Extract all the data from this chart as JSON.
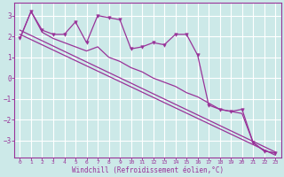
{
  "x": [
    0,
    1,
    2,
    3,
    4,
    5,
    6,
    7,
    8,
    9,
    10,
    11,
    12,
    13,
    14,
    15,
    16,
    17,
    18,
    19,
    20,
    21,
    22,
    23
  ],
  "line1": [
    1.9,
    3.2,
    2.3,
    2.1,
    2.1,
    2.7,
    1.7,
    3.0,
    2.9,
    2.8,
    1.4,
    1.5,
    1.7,
    1.6,
    2.1,
    2.1,
    1.1,
    -1.3,
    -1.5,
    -1.6,
    -1.5,
    -3.1,
    -3.5,
    -3.6
  ],
  "line2": [
    1.9,
    3.2,
    2.2,
    1.9,
    1.7,
    1.5,
    1.3,
    1.5,
    1.0,
    0.8,
    0.5,
    0.3,
    0.0,
    -0.2,
    -0.4,
    -0.7,
    -0.9,
    -1.2,
    -1.5,
    -1.6,
    -1.7,
    -3.1,
    -3.5,
    -3.6
  ],
  "trend_x": [
    0,
    23
  ],
  "trend1_y": [
    2.3,
    -3.55
  ],
  "trend2_y": [
    2.1,
    -3.7
  ],
  "background_color": "#cce9e8",
  "grid_color": "#ffffff",
  "line_color": "#993399",
  "xlabel": "Windchill (Refroidissement éolien,°C)",
  "ylim": [
    -3.8,
    3.6
  ],
  "xlim": [
    -0.5,
    23.5
  ],
  "yticks": [
    -3,
    -2,
    -1,
    0,
    1,
    2,
    3
  ],
  "xticks": [
    0,
    1,
    2,
    3,
    4,
    5,
    6,
    7,
    8,
    9,
    10,
    11,
    12,
    13,
    14,
    15,
    16,
    17,
    18,
    19,
    20,
    21,
    22,
    23
  ]
}
